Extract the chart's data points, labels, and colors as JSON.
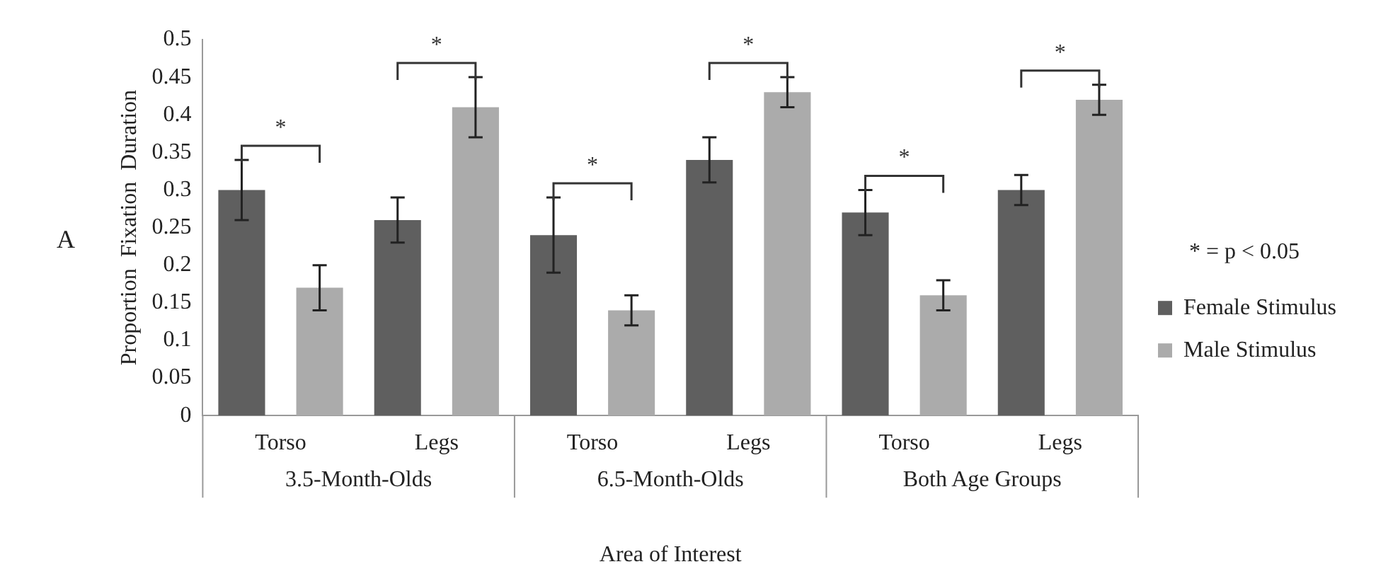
{
  "chart_data": {
    "type": "bar",
    "xlabel": "Area of Interest",
    "ylabel": "Proportion  Fixation  Duration",
    "legend_title": "* = p < 0.05",
    "categories": [
      "Torso",
      "Legs",
      "Torso",
      "Legs",
      "Torso",
      "Legs"
    ],
    "series": [
      {
        "name": "Female Stimulus",
        "color": "#5f5f5f",
        "values": [
          0.3,
          0.26,
          0.24,
          0.34,
          0.27,
          0.3
        ],
        "errors": [
          0.04,
          0.03,
          0.05,
          0.03,
          0.03,
          0.02
        ]
      },
      {
        "name": "Male Stimulus",
        "color": "#ababab",
        "values": [
          0.17,
          0.41,
          0.14,
          0.43,
          0.16,
          0.42
        ],
        "errors": [
          0.03,
          0.04,
          0.02,
          0.02,
          0.02,
          0.02
        ]
      }
    ],
    "ylim": [
      0,
      0.5
    ],
    "yticks": [
      0,
      0.05,
      0.1,
      0.15,
      0.2,
      0.25,
      0.3,
      0.35,
      0.4,
      0.45,
      0.5
    ],
    "grid": false,
    "legend": "right",
    "annotations": [
      "A",
      "3.5-Month-Olds",
      "6.5-Month-Olds",
      "Both Age Groups",
      "*",
      "*",
      "*",
      "*",
      "*",
      "*"
    ]
  }
}
